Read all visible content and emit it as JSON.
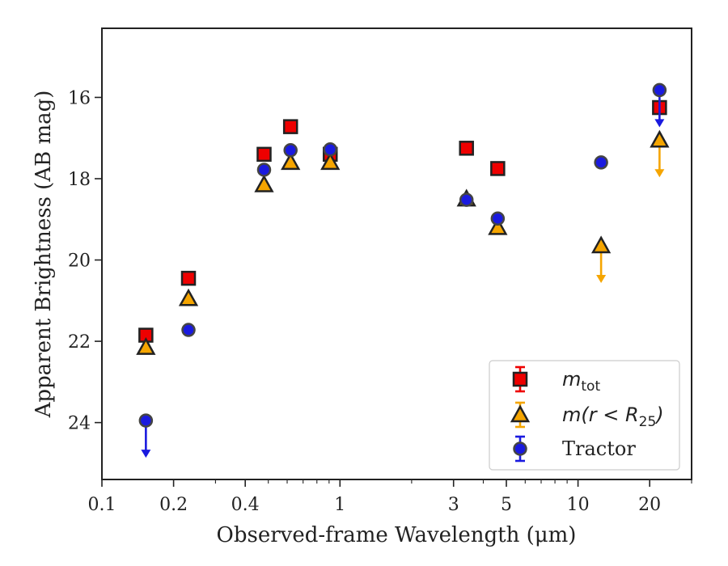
{
  "chart_data": {
    "type": "scatter",
    "xlabel": "Observed-frame Wavelength (μm)",
    "ylabel": "Apparent Brightness (AB mag)",
    "xscale": "log",
    "xlim": [
      0.1,
      30
    ],
    "ylim": [
      25.4,
      14.3
    ],
    "y_inverted": true,
    "grid": false,
    "legend_position": "lower-right",
    "x_ticks": [
      {
        "value": 0.1,
        "label": "0.1"
      },
      {
        "value": 0.2,
        "label": "0.2"
      },
      {
        "value": 0.4,
        "label": "0.4"
      },
      {
        "value": 1,
        "label": "1"
      },
      {
        "value": 3,
        "label": "3"
      },
      {
        "value": 5,
        "label": "5"
      },
      {
        "value": 10,
        "label": "10"
      },
      {
        "value": 20,
        "label": "20"
      }
    ],
    "y_ticks": [
      {
        "value": 16,
        "label": "16"
      },
      {
        "value": 18,
        "label": "18"
      },
      {
        "value": 20,
        "label": "20"
      },
      {
        "value": 22,
        "label": "22"
      },
      {
        "value": 24,
        "label": "24"
      }
    ],
    "series": [
      {
        "name": "m_tot",
        "legend_main": "m",
        "legend_sub": "tot",
        "marker": "square",
        "color": "#ee0000",
        "edge_color": "#222222",
        "x": [
          0.153,
          0.231,
          0.48,
          0.62,
          0.91,
          3.4,
          4.6,
          22
        ],
        "y": [
          21.85,
          20.45,
          17.4,
          16.72,
          17.4,
          17.25,
          17.75,
          16.25
        ],
        "upper_limit": [
          false,
          false,
          false,
          false,
          false,
          false,
          false,
          false
        ]
      },
      {
        "name": "m(r<R25)",
        "legend_main": "m(r < R",
        "legend_sub": "25",
        "legend_tail": ")",
        "marker": "triangle",
        "color": "#f5a500",
        "edge_color": "#222222",
        "x": [
          0.153,
          0.231,
          0.48,
          0.62,
          0.91,
          3.4,
          4.6,
          12.5,
          22
        ],
        "y": [
          22.15,
          20.95,
          18.15,
          17.6,
          17.6,
          18.5,
          19.2,
          19.65,
          17.05
        ],
        "upper_limit": [
          false,
          false,
          false,
          false,
          false,
          false,
          false,
          true,
          true
        ]
      },
      {
        "name": "Tractor",
        "legend_main": "Tractor",
        "marker": "circle",
        "color": "#1a1adf",
        "edge_color": "#444444",
        "x": [
          0.153,
          0.231,
          0.48,
          0.62,
          0.91,
          3.4,
          4.6,
          12.5,
          22
        ],
        "y": [
          23.95,
          21.72,
          17.78,
          17.3,
          17.28,
          18.52,
          18.98,
          17.6,
          15.82
        ],
        "upper_limit": [
          true,
          false,
          false,
          false,
          false,
          false,
          false,
          false,
          true
        ]
      }
    ]
  }
}
